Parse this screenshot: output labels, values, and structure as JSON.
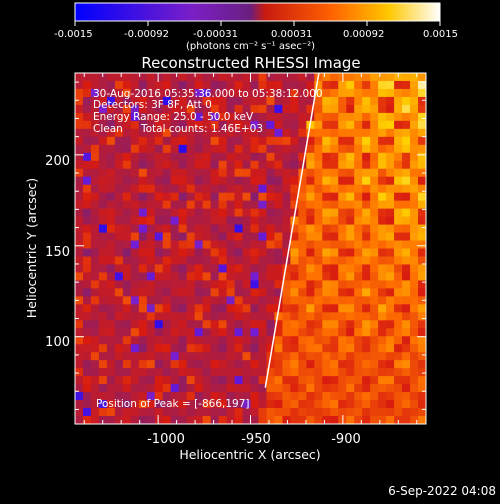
{
  "colorbar": {
    "ticks": [
      "-0.0015",
      "-0.00092",
      "-0.00031",
      "0.00031",
      "0.00092",
      "0.0015"
    ],
    "unit_label": "(photons cm⁻² s⁻¹ asec⁻²)",
    "range": [
      -0.0015,
      0.0015
    ]
  },
  "chart_data": {
    "type": "heatmap",
    "title": "Reconstructed RHESSI Image",
    "xlabel": "Heliocentric X (arcsec)",
    "ylabel": "Heliocentric Y (arcsec)",
    "xlim": [
      -1045,
      -855
    ],
    "ylim": [
      52,
      245
    ],
    "x_ticks": [
      "-1000",
      "-950",
      "-900"
    ],
    "y_ticks": [
      "100",
      "150",
      "200"
    ],
    "limb_line": {
      "x": [
        -942,
        -913
      ],
      "y": [
        72,
        245
      ]
    },
    "annotations": {
      "time_range": "30-Aug-2016 05:35:36.000 to 05:38:12.000",
      "detectors": "Detectors: 3F 8F, Att 0",
      "energy_range": "Energy Range: 25.0 - 50.0 keV",
      "method": "Clean",
      "total_counts": "Total counts: 1.46E+03",
      "peak_position": "Position of Peak = [-866,197]"
    },
    "colormap": [
      "#0000ff",
      "#7a20d0",
      "#6a1f8f",
      "#d81b10",
      "#ff7000",
      "#ffd000",
      "#ffffff"
    ]
  },
  "footer": {
    "date": "6-Sep-2022 04:08"
  }
}
